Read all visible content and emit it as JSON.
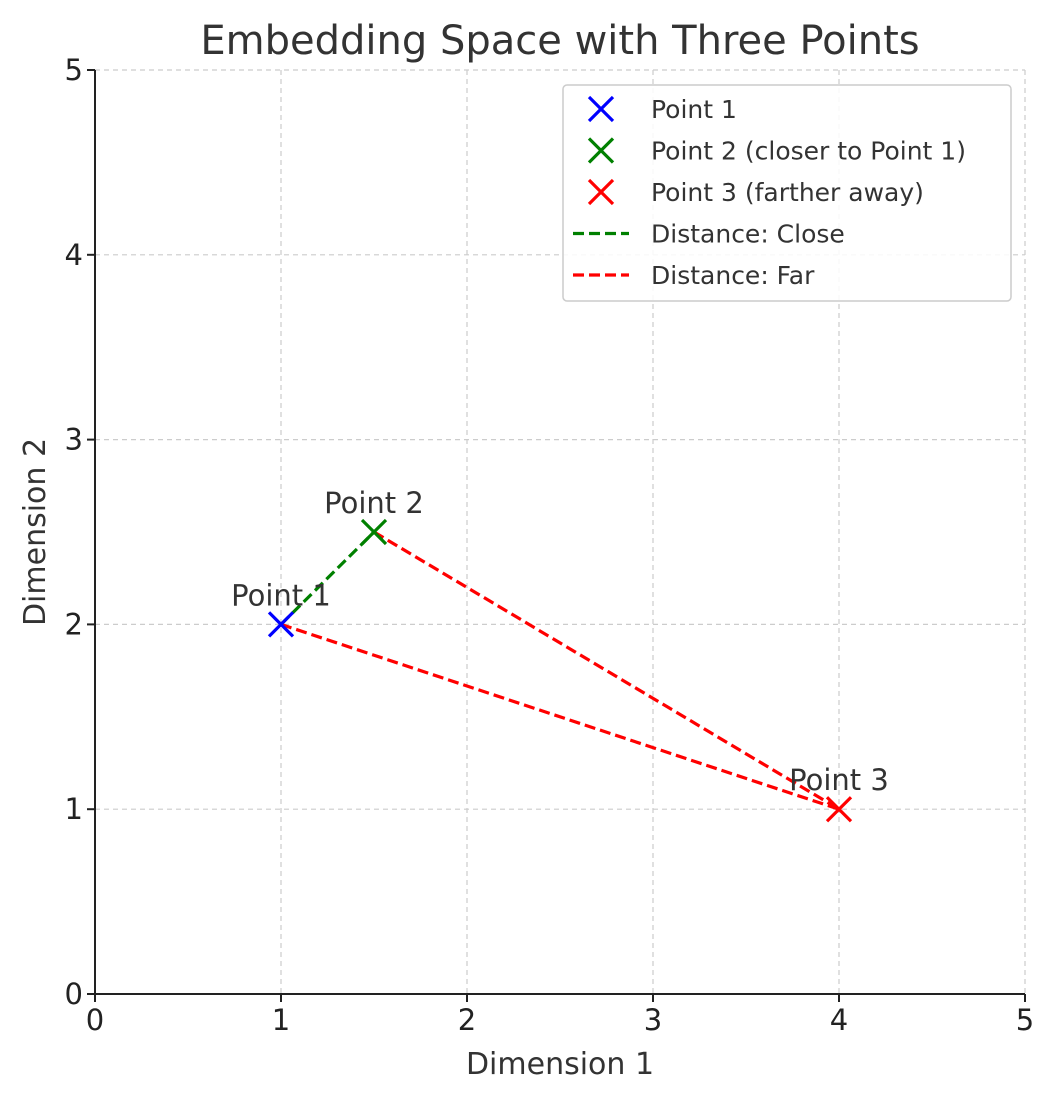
{
  "chart_data": {
    "type": "scatter",
    "title": "Embedding Space with Three Points",
    "xlabel": "Dimension 1",
    "ylabel": "Dimension 2",
    "xlim": [
      0,
      5
    ],
    "ylim": [
      0,
      5
    ],
    "xticks": [
      0,
      1,
      2,
      3,
      4,
      5
    ],
    "yticks": [
      0,
      1,
      2,
      3,
      4,
      5
    ],
    "grid": true,
    "legend_position": "top-right",
    "points": [
      {
        "name": "Point 1",
        "legend": "Point 1",
        "x": 1,
        "y": 2,
        "color": "#0000ff",
        "marker": "x"
      },
      {
        "name": "Point 2",
        "legend": "Point 2 (closer to Point 1)",
        "x": 1.5,
        "y": 2.5,
        "color": "#008000",
        "marker": "x"
      },
      {
        "name": "Point 3",
        "legend": "Point 3 (farther away)",
        "x": 4,
        "y": 1,
        "color": "#ff0000",
        "marker": "x"
      }
    ],
    "lines": [
      {
        "legend": "Distance: Close",
        "color": "#008000",
        "style": "dashed",
        "points": [
          [
            1,
            2
          ],
          [
            1.5,
            2.5
          ]
        ]
      },
      {
        "legend": "Distance: Far",
        "color": "#ff0000",
        "style": "dashed",
        "points": [
          [
            1,
            2
          ],
          [
            4,
            1
          ]
        ]
      },
      {
        "legend": "",
        "color": "#ff0000",
        "style": "dashed",
        "points": [
          [
            1.5,
            2.5
          ],
          [
            4,
            1
          ]
        ]
      }
    ]
  }
}
